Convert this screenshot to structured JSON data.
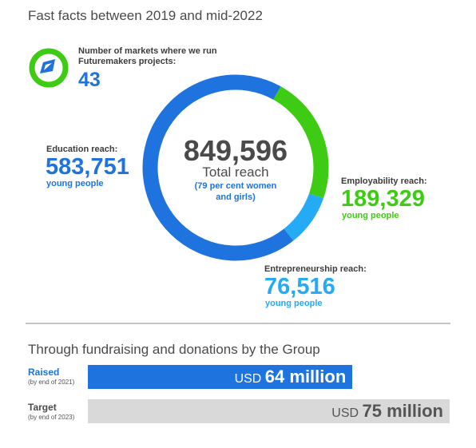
{
  "title": "Fast facts between 2019 and mid-2022",
  "markets": {
    "label": "Number of markets where we run Futuremakers projects:",
    "value": "43",
    "icon": "compass-icon"
  },
  "total": {
    "value": "849,596",
    "label": "Total reach",
    "note": "(79 per cent women and girls)"
  },
  "segments": {
    "education": {
      "label": "Education reach:",
      "value": "583,751",
      "sub": "young people"
    },
    "employability": {
      "label": "Employability reach:",
      "value": "189,329",
      "sub": "young people"
    },
    "entrepreneurship": {
      "label": "Entrepreneurship reach:",
      "value": "76,516",
      "sub": "young people"
    }
  },
  "fundraising": {
    "title": "Through fundraising and donations by the Group",
    "raised": {
      "label": "Raised",
      "note": "(by end of 2021)",
      "unit": "USD",
      "amount": "64 million"
    },
    "target": {
      "label": "Target",
      "note": "(by end of 2023)",
      "unit": "USD",
      "amount": "75 million"
    }
  },
  "colors": {
    "education": "#1f73de",
    "employability": "#3ecb13",
    "entrepreneurship": "#25aaf5",
    "target_bar": "#d9d9d9"
  },
  "chart_data": [
    {
      "type": "pie",
      "title": "",
      "categories": [
        "Education reach",
        "Employability reach",
        "Entrepreneurship reach"
      ],
      "values": [
        583751,
        189329,
        76516
      ],
      "total": 849596
    },
    {
      "type": "bar",
      "title": "Through fundraising and donations by the Group",
      "categories": [
        "Raised",
        "Target"
      ],
      "values": [
        64,
        75
      ],
      "unit": "USD million"
    }
  ]
}
